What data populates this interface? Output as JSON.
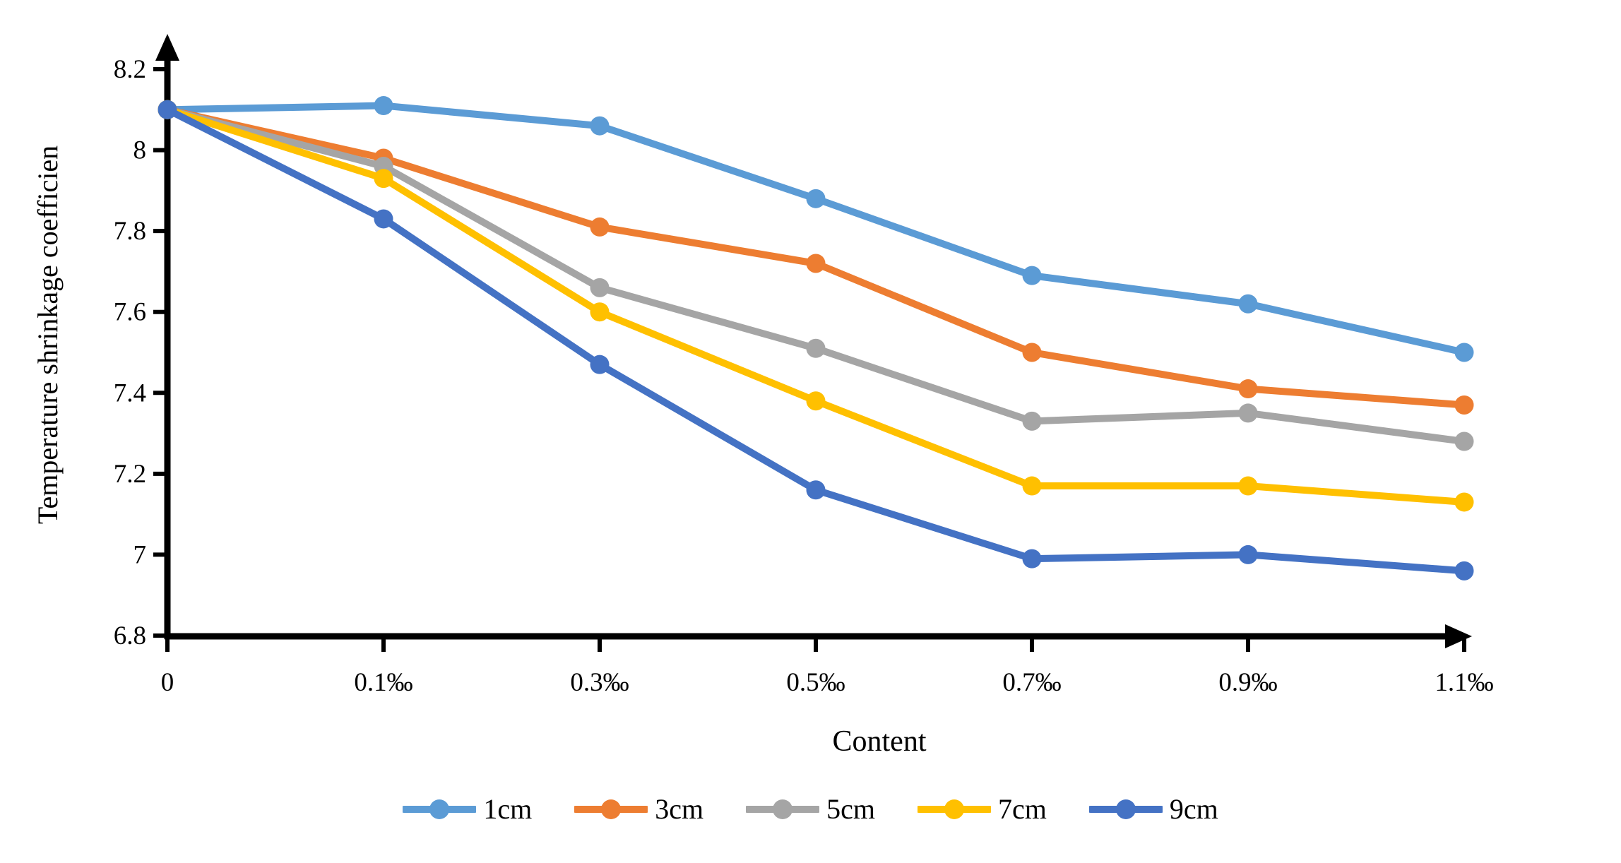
{
  "chart_data": {
    "type": "line",
    "title": "",
    "xlabel": "Content",
    "ylabel": "Temperature shrinkage coefficien",
    "x_axis_type": "categorical",
    "categories": [
      "0",
      "0.1‰",
      "0.3‰",
      "0.5‰",
      "0.7‰",
      "0.9‰",
      "1.1‰"
    ],
    "x_values_permille": [
      0,
      0.1,
      0.3,
      0.5,
      0.7,
      0.9,
      1.1
    ],
    "y_ticks": [
      6.8,
      7.0,
      7.2,
      7.4,
      7.6,
      7.8,
      8.0,
      8.2
    ],
    "y_tick_labels": [
      "6.8",
      "7",
      "7.2",
      "7.4",
      "7.6",
      "7.8",
      "8",
      "8.2"
    ],
    "ylim": [
      6.8,
      8.2
    ],
    "grid": false,
    "legend_position": "bottom",
    "axis_color": "#000000",
    "marker_shape": "circle",
    "series": [
      {
        "name": "1cm",
        "color": "#5B9BD5",
        "values": [
          8.1,
          8.11,
          8.06,
          7.88,
          7.69,
          7.62,
          7.5
        ]
      },
      {
        "name": "3cm",
        "color": "#ED7D31",
        "values": [
          8.1,
          7.98,
          7.81,
          7.72,
          7.5,
          7.41,
          7.37
        ]
      },
      {
        "name": "5cm",
        "color": "#A5A5A5",
        "values": [
          8.1,
          7.96,
          7.66,
          7.51,
          7.33,
          7.35,
          7.28
        ]
      },
      {
        "name": "7cm",
        "color": "#FFC000",
        "values": [
          8.1,
          7.93,
          7.6,
          7.38,
          7.17,
          7.17,
          7.13
        ]
      },
      {
        "name": "9cm",
        "color": "#4472C4",
        "values": [
          8.1,
          7.83,
          7.47,
          7.16,
          6.99,
          7.0,
          6.96
        ]
      }
    ]
  }
}
